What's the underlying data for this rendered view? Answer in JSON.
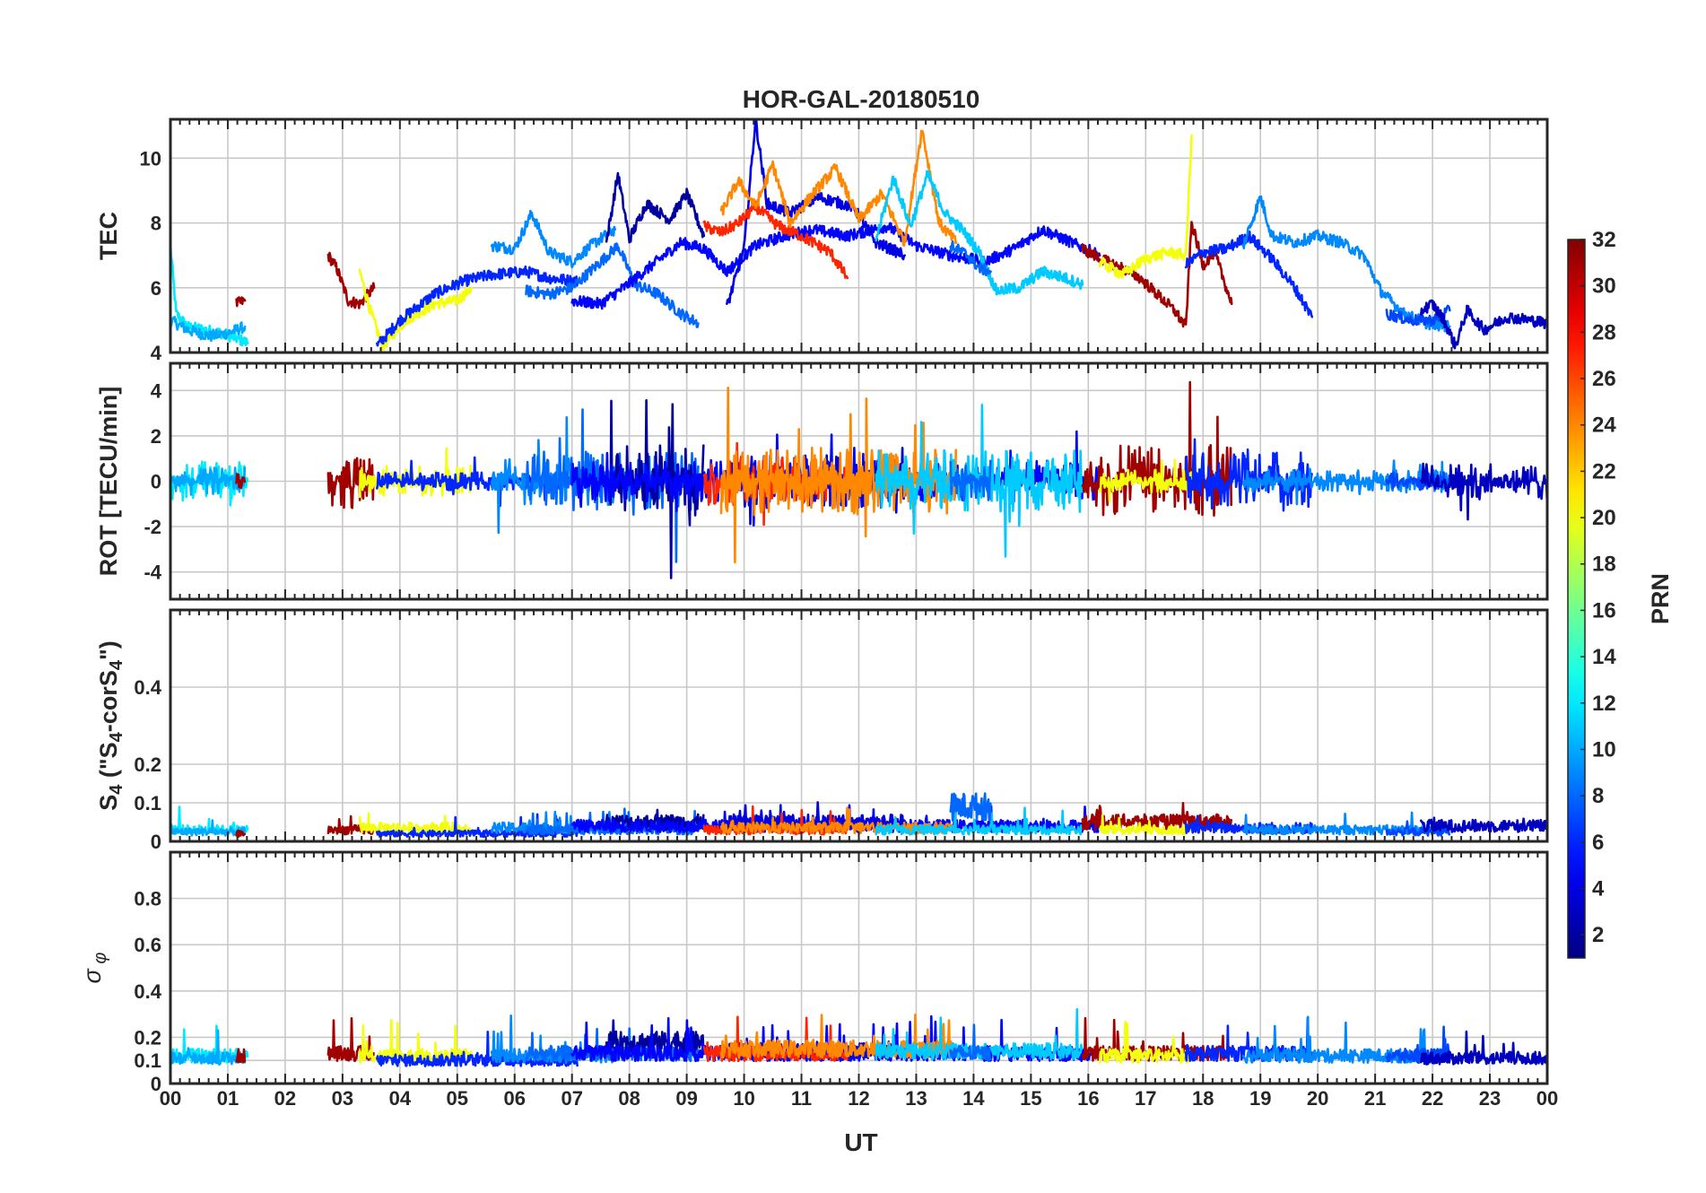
{
  "chart_data": {
    "title": "HOR-GAL-20180510",
    "type": "line",
    "xlabel": "UT",
    "x_ticks": [
      "00",
      "01",
      "02",
      "03",
      "04",
      "05",
      "06",
      "07",
      "08",
      "09",
      "10",
      "11",
      "12",
      "13",
      "14",
      "15",
      "16",
      "17",
      "18",
      "19",
      "20",
      "21",
      "22",
      "23",
      "00"
    ],
    "xlim": [
      0,
      24
    ],
    "grid": true,
    "panels": [
      {
        "key": "tec",
        "ylabel": "TEC",
        "ylim": [
          4,
          11.2
        ],
        "yticks": [
          4,
          6,
          8,
          10
        ],
        "ytick_labels": [
          "4",
          "6",
          "8",
          "10"
        ]
      },
      {
        "key": "rot",
        "ylabel": "ROT [TECU/min]",
        "ylim": [
          -5.2,
          5.2
        ],
        "yticks": [
          -4,
          -2,
          0,
          2,
          4
        ],
        "ytick_labels": [
          "-4",
          "-2",
          "0",
          "2",
          "4"
        ]
      },
      {
        "key": "s4",
        "ylabel_main": "S",
        "ylabel_sub1": "4",
        "ylabel_mid1": " (\"S",
        "ylabel_sub2": "4",
        "ylabel_mid2": "-corS",
        "ylabel_sub3": "4",
        "ylabel_end": "\")",
        "ylim": [
          0,
          0.6
        ],
        "yticks": [
          0,
          0.1,
          0.2,
          0.4
        ],
        "ytick_labels": [
          "0",
          "0.1",
          "0.2",
          "0.4"
        ]
      },
      {
        "key": "sigphi",
        "ylabel_main": "σ",
        "ylabel_sub": "φ",
        "ylim": [
          0,
          1.0
        ],
        "yticks": [
          0,
          0.1,
          0.2,
          0.4,
          0.6,
          0.8
        ],
        "ytick_labels": [
          "0",
          "0.1",
          "0.2",
          "0.4",
          "0.6",
          "0.8"
        ]
      }
    ],
    "colorbar": {
      "label": "PRN",
      "range": [
        1,
        32
      ],
      "ticks": [
        2,
        4,
        6,
        8,
        10,
        12,
        14,
        16,
        18,
        20,
        22,
        24,
        26,
        28,
        30,
        32
      ],
      "tick_labels": [
        "2",
        "4",
        "6",
        "8",
        "10",
        "12",
        "14",
        "16",
        "18",
        "20",
        "22",
        "24",
        "26",
        "28",
        "30",
        "32"
      ],
      "colormap": "jet"
    },
    "series": [
      {
        "prn": 12,
        "tec": [
          [
            0,
            7.3
          ],
          [
            0.1,
            5.2
          ],
          [
            0.3,
            4.8
          ],
          [
            0.6,
            4.7
          ],
          [
            0.9,
            4.6
          ],
          [
            1.2,
            4.4
          ],
          [
            1.35,
            4.3
          ]
        ],
        "rot_mag": 0.9,
        "s4_base": 0.03,
        "sig_base": 0.12,
        "start": 0,
        "end": 1.35
      },
      {
        "prn": 10,
        "tec": [
          [
            0,
            5.0
          ],
          [
            0.3,
            4.7
          ],
          [
            0.7,
            4.5
          ],
          [
            1.0,
            4.6
          ],
          [
            1.3,
            4.8
          ]
        ],
        "rot_mag": 0.6,
        "s4_base": 0.025,
        "sig_base": 0.11,
        "start": 0,
        "end": 1.3
      },
      {
        "prn": 31,
        "tec": [
          [
            1.15,
            5.5
          ],
          [
            1.3,
            5.6
          ]
        ],
        "rot_mag": 0.3,
        "s4_base": 0.02,
        "sig_base": 0.12,
        "start": 1.15,
        "end": 1.3
      },
      {
        "prn": 31,
        "tec": [
          [
            2.75,
            7.0
          ],
          [
            2.9,
            6.6
          ],
          [
            3.1,
            5.6
          ],
          [
            3.3,
            5.5
          ],
          [
            3.55,
            6.0
          ]
        ],
        "rot_mag": 1.2,
        "s4_base": 0.03,
        "sig_base": 0.13,
        "start": 2.75,
        "end": 3.55
      },
      {
        "prn": 20,
        "tec": [
          [
            3.3,
            6.5
          ],
          [
            3.5,
            5.2
          ],
          [
            3.7,
            4.2
          ],
          [
            4.1,
            5.0
          ],
          [
            4.6,
            5.5
          ],
          [
            5.0,
            5.6
          ],
          [
            5.25,
            6.0
          ]
        ],
        "rot_mag": 0.7,
        "s4_base": 0.035,
        "sig_base": 0.12,
        "start": 3.3,
        "end": 5.25
      },
      {
        "prn": 6,
        "tec": [
          [
            3.6,
            4.2
          ],
          [
            4.0,
            5.0
          ],
          [
            4.6,
            5.8
          ],
          [
            5.1,
            6.2
          ],
          [
            5.6,
            6.4
          ],
          [
            6.2,
            6.5
          ],
          [
            6.6,
            6.3
          ],
          [
            7.1,
            6.2
          ]
        ],
        "rot_mag": 0.4,
        "s4_base": 0.02,
        "sig_base": 0.1,
        "start": 3.6,
        "end": 7.1
      },
      {
        "prn": 9,
        "tec": [
          [
            5.6,
            7.3
          ],
          [
            6.0,
            7.2
          ],
          [
            6.3,
            8.3
          ],
          [
            6.6,
            7.1
          ],
          [
            7.0,
            6.8
          ],
          [
            7.4,
            7.4
          ],
          [
            7.75,
            7.8
          ]
        ],
        "rot_mag": 1.1,
        "s4_base": 0.035,
        "sig_base": 0.12,
        "start": 5.6,
        "end": 7.75
      },
      {
        "prn": 8,
        "tec": [
          [
            6.2,
            5.9
          ],
          [
            6.6,
            5.8
          ],
          [
            7.0,
            6.0
          ],
          [
            7.5,
            6.8
          ],
          [
            7.8,
            7.3
          ],
          [
            8.1,
            6.1
          ],
          [
            8.5,
            5.8
          ],
          [
            8.9,
            5.2
          ],
          [
            9.2,
            4.9
          ]
        ],
        "rot_mag": 1.3,
        "s4_base": 0.03,
        "sig_base": 0.13,
        "start": 6.2,
        "end": 9.2
      },
      {
        "prn": 2,
        "tec": [
          [
            7.6,
            7.4
          ],
          [
            7.8,
            9.5
          ],
          [
            8.0,
            7.5
          ],
          [
            8.3,
            8.6
          ],
          [
            8.7,
            8.1
          ],
          [
            9.0,
            8.9
          ],
          [
            9.3,
            7.6
          ]
        ],
        "rot_mag": 1.6,
        "s4_base": 0.05,
        "sig_base": 0.18,
        "start": 7.6,
        "end": 9.3
      },
      {
        "prn": 5,
        "tec": [
          [
            7.0,
            5.6
          ],
          [
            7.5,
            5.5
          ],
          [
            7.9,
            6.0
          ],
          [
            8.4,
            6.7
          ],
          [
            8.9,
            7.4
          ],
          [
            9.3,
            7.2
          ],
          [
            9.7,
            6.5
          ],
          [
            10.2,
            7.3
          ],
          [
            10.7,
            7.6
          ],
          [
            11.2,
            7.8
          ],
          [
            11.8,
            7.6
          ],
          [
            12.5,
            7.9
          ],
          [
            13.0,
            7.3
          ],
          [
            13.6,
            7.0
          ],
          [
            14.2,
            6.8
          ],
          [
            14.7,
            7.2
          ],
          [
            15.2,
            7.8
          ],
          [
            15.7,
            7.4
          ],
          [
            16.2,
            7.0
          ]
        ],
        "rot_mag": 0.9,
        "s4_base": 0.04,
        "sig_base": 0.13,
        "start": 7.0,
        "end": 16.2
      },
      {
        "prn": 4,
        "tec": [
          [
            9.7,
            5.4
          ],
          [
            10.0,
            7.2
          ],
          [
            10.2,
            11.2
          ],
          [
            10.4,
            8.6
          ],
          [
            10.8,
            8.3
          ],
          [
            11.3,
            8.8
          ],
          [
            11.9,
            8.5
          ],
          [
            12.3,
            7.4
          ],
          [
            12.8,
            7.0
          ]
        ],
        "rot_mag": 1.2,
        "s4_base": 0.05,
        "sig_base": 0.14,
        "start": 9.7,
        "end": 12.8
      },
      {
        "prn": 27,
        "tec": [
          [
            9.3,
            7.9
          ],
          [
            9.6,
            7.7
          ],
          [
            9.9,
            8.0
          ],
          [
            10.2,
            8.5
          ],
          [
            10.6,
            7.9
          ],
          [
            11.0,
            7.6
          ],
          [
            11.5,
            7.1
          ],
          [
            11.8,
            6.3
          ]
        ],
        "rot_mag": 1.1,
        "s4_base": 0.03,
        "sig_base": 0.13,
        "start": 9.3,
        "end": 11.8
      },
      {
        "prn": 24,
        "tec": [
          [
            9.6,
            8.3
          ],
          [
            9.9,
            9.3
          ],
          [
            10.2,
            8.5
          ],
          [
            10.5,
            9.8
          ],
          [
            10.8,
            8.0
          ],
          [
            11.2,
            8.9
          ],
          [
            11.6,
            9.7
          ],
          [
            12.0,
            8.1
          ],
          [
            12.4,
            8.9
          ],
          [
            12.8,
            7.4
          ],
          [
            13.1,
            10.9
          ],
          [
            13.4,
            8.0
          ],
          [
            13.7,
            7.4
          ]
        ],
        "rot_mag": 1.5,
        "s4_base": 0.035,
        "sig_base": 0.15,
        "start": 9.6,
        "end": 13.7
      },
      {
        "prn": 11,
        "tec": [
          [
            12.3,
            7.5
          ],
          [
            12.6,
            9.4
          ],
          [
            12.9,
            7.9
          ],
          [
            13.2,
            9.5
          ],
          [
            13.5,
            8.3
          ],
          [
            13.8,
            7.8
          ],
          [
            14.1,
            7.1
          ],
          [
            14.4,
            5.9
          ],
          [
            14.8,
            6.0
          ],
          [
            15.2,
            6.5
          ],
          [
            15.6,
            6.3
          ],
          [
            15.9,
            6.1
          ]
        ],
        "rot_mag": 1.4,
        "s4_base": 0.03,
        "sig_base": 0.14,
        "start": 12.3,
        "end": 15.9
      },
      {
        "prn": 8,
        "tec": [
          [
            13.6,
            7.3
          ],
          [
            13.9,
            7.0
          ],
          [
            14.1,
            6.6
          ],
          [
            14.3,
            6.5
          ]
        ],
        "rot_mag": 0.9,
        "s4_base": 0.09,
        "sig_base": 0.13,
        "start": 13.6,
        "end": 14.3
      },
      {
        "prn": 31,
        "tec": [
          [
            15.9,
            7.2
          ],
          [
            16.2,
            6.9
          ],
          [
            16.6,
            6.6
          ],
          [
            16.9,
            6.3
          ],
          [
            17.2,
            5.8
          ],
          [
            17.5,
            5.3
          ],
          [
            17.7,
            4.8
          ],
          [
            17.8,
            8.0
          ],
          [
            18.0,
            6.7
          ],
          [
            18.2,
            7.1
          ],
          [
            18.5,
            5.5
          ]
        ],
        "rot_mag": 1.6,
        "s4_base": 0.05,
        "sig_base": 0.13,
        "start": 15.9,
        "end": 18.5
      },
      {
        "prn": 20,
        "tec": [
          [
            16.2,
            6.8
          ],
          [
            16.6,
            6.4
          ],
          [
            17.0,
            6.9
          ],
          [
            17.4,
            7.1
          ],
          [
            17.7,
            7.0
          ],
          [
            17.8,
            10.7
          ]
        ],
        "rot_mag": 0.5,
        "s4_base": 0.03,
        "sig_base": 0.12,
        "start": 16.2,
        "end": 17.8
      },
      {
        "prn": 6,
        "tec": [
          [
            17.7,
            6.7
          ],
          [
            18.0,
            7.1
          ],
          [
            18.4,
            7.2
          ],
          [
            18.8,
            7.6
          ],
          [
            19.2,
            6.9
          ],
          [
            19.6,
            6.0
          ],
          [
            19.9,
            5.1
          ]
        ],
        "rot_mag": 1.3,
        "s4_base": 0.035,
        "sig_base": 0.13,
        "start": 17.7,
        "end": 19.9
      },
      {
        "prn": 9,
        "tec": [
          [
            18.7,
            7.3
          ],
          [
            19.0,
            8.8
          ],
          [
            19.2,
            7.6
          ],
          [
            19.6,
            7.4
          ],
          [
            20.0,
            7.6
          ],
          [
            20.4,
            7.4
          ],
          [
            20.8,
            7.0
          ],
          [
            21.1,
            5.9
          ],
          [
            21.5,
            5.2
          ],
          [
            21.9,
            4.9
          ],
          [
            22.3,
            4.8
          ]
        ],
        "rot_mag": 0.5,
        "s4_base": 0.03,
        "sig_base": 0.12,
        "start": 18.7,
        "end": 22.3
      },
      {
        "prn": 7,
        "tec": [
          [
            21.2,
            5.2
          ],
          [
            21.6,
            5.0
          ],
          [
            22.0,
            5.0
          ],
          [
            22.3,
            5.3
          ]
        ],
        "rot_mag": 0.4,
        "s4_base": 0.025,
        "sig_base": 0.12,
        "start": 21.2,
        "end": 22.3
      },
      {
        "prn": 3,
        "tec": [
          [
            21.8,
            5.3
          ],
          [
            22.0,
            5.5
          ],
          [
            22.2,
            5.0
          ],
          [
            22.4,
            4.2
          ],
          [
            22.6,
            5.3
          ],
          [
            22.9,
            4.7
          ],
          [
            23.3,
            5.1
          ],
          [
            23.7,
            5.0
          ],
          [
            24.0,
            4.9
          ]
        ],
        "rot_mag": 0.8,
        "s4_base": 0.04,
        "sig_base": 0.11,
        "start": 21.8,
        "end": 24.0
      }
    ]
  }
}
